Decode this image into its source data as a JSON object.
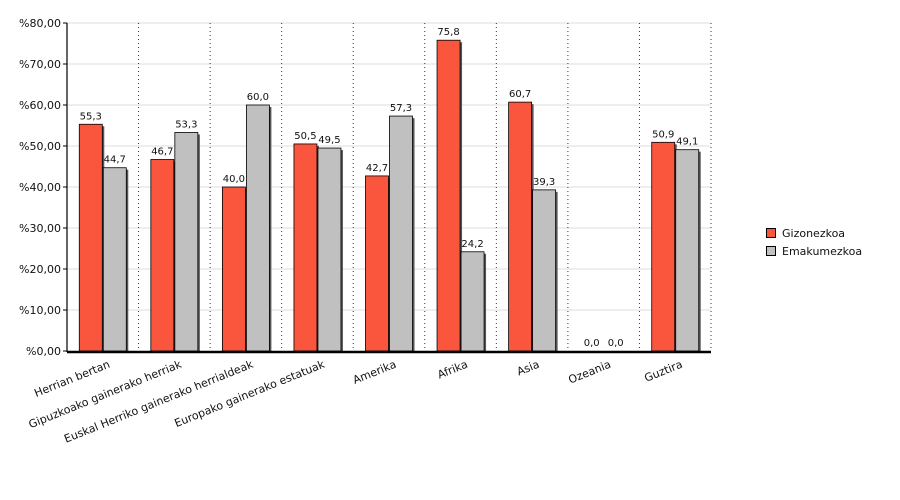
{
  "chart_data": {
    "type": "bar",
    "categories": [
      "Herrian bertan",
      "Gipuzkoako gainerako herriak",
      "Euskal Herriko gainerako herrialdeak",
      "Europako gainerako estatuak",
      "Amerika",
      "Afrika",
      "Asia",
      "Ozeania",
      "Guztira"
    ],
    "series": [
      {
        "name": "Gizonezkoa",
        "color": "#f9563d",
        "values": [
          55.3,
          46.7,
          40.0,
          50.5,
          42.7,
          75.8,
          60.7,
          0.0,
          50.9
        ],
        "labels": [
          "55,3",
          "46,7",
          "40,0",
          "50,5",
          "42,7",
          "75,8",
          "60,7",
          "0,0",
          "50,9"
        ]
      },
      {
        "name": "Emakumezkoa",
        "color": "#c0c0c0",
        "values": [
          44.7,
          53.3,
          60.0,
          49.5,
          57.3,
          24.2,
          39.3,
          0.0,
          49.1
        ],
        "labels": [
          "44,7",
          "53,3",
          "60,0",
          "49,5",
          "57,3",
          "24,2",
          "39,3",
          "0,0",
          "49,1"
        ]
      }
    ],
    "y_ticks": [
      {
        "value": 0,
        "label": "%0,00"
      },
      {
        "value": 10,
        "label": "%10,00"
      },
      {
        "value": 20,
        "label": "%20,00"
      },
      {
        "value": 30,
        "label": "%30,00"
      },
      {
        "value": 40,
        "label": "%40,00"
      },
      {
        "value": 50,
        "label": "%50,00"
      },
      {
        "value": 60,
        "label": "%60,00"
      },
      {
        "value": 70,
        "label": "%70,00"
      },
      {
        "value": 80,
        "label": "%80,00"
      }
    ],
    "ylim": [
      0,
      80
    ],
    "grid": true,
    "legend_position": "right"
  }
}
